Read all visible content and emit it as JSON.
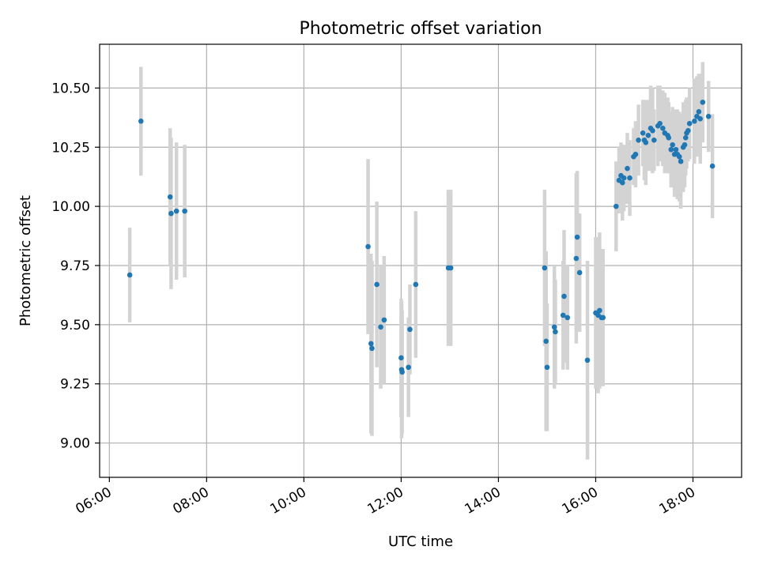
{
  "chart_data": {
    "type": "scatter",
    "title": "Photometric offset variation",
    "xlabel": "UTC time",
    "ylabel": "Photometric offset",
    "x_unit": "hours",
    "xlim": [
      5.8,
      19.0
    ],
    "ylim": [
      8.855,
      10.685
    ],
    "x_ticks": [
      {
        "value": 6,
        "label": "06:00"
      },
      {
        "value": 8,
        "label": "08:00"
      },
      {
        "value": 10,
        "label": "10:00"
      },
      {
        "value": 12,
        "label": "12:00"
      },
      {
        "value": 14,
        "label": "14:00"
      },
      {
        "value": 16,
        "label": "16:00"
      },
      {
        "value": 18,
        "label": "18:00"
      }
    ],
    "y_ticks": [
      {
        "value": 9.0,
        "label": "9.00"
      },
      {
        "value": 9.25,
        "label": "9.25"
      },
      {
        "value": 9.5,
        "label": "9.50"
      },
      {
        "value": 9.75,
        "label": "9.75"
      },
      {
        "value": 10.0,
        "label": "10.00"
      },
      {
        "value": 10.25,
        "label": "10.25"
      },
      {
        "value": 10.5,
        "label": "10.50"
      }
    ],
    "grid": true,
    "colors": {
      "marker": "#1f77b4",
      "errorbar": "#d3d3d3",
      "grid": "#b0b0b0"
    },
    "series": [
      {
        "points": [
          [
            6.42,
            9.71,
            0.2
          ],
          [
            6.65,
            10.36,
            0.23
          ],
          [
            7.25,
            10.04,
            0.29
          ],
          [
            7.27,
            9.97,
            0.32
          ],
          [
            7.38,
            9.98,
            0.29
          ],
          [
            7.55,
            9.98,
            0.28
          ],
          [
            11.32,
            9.83,
            0.37
          ],
          [
            11.38,
            9.42,
            0.38
          ],
          [
            11.4,
            9.4,
            0.37
          ],
          [
            11.5,
            9.67,
            0.35
          ],
          [
            11.58,
            9.49,
            0.26
          ],
          [
            11.65,
            9.52,
            0.27
          ],
          [
            12.0,
            9.36,
            0.25
          ],
          [
            12.01,
            9.31,
            0.29
          ],
          [
            12.02,
            9.3,
            0.26
          ],
          [
            12.15,
            9.32,
            0.21
          ],
          [
            12.18,
            9.48,
            0.19
          ],
          [
            12.3,
            9.67,
            0.31
          ],
          [
            12.97,
            9.74,
            0.33
          ],
          [
            13.02,
            9.74,
            0.33
          ],
          [
            14.95,
            9.74,
            0.33
          ],
          [
            14.98,
            9.43,
            0.38
          ],
          [
            15.0,
            9.32,
            0.27
          ],
          [
            15.15,
            9.49,
            0.26
          ],
          [
            15.17,
            9.47,
            0.22
          ],
          [
            15.33,
            9.54,
            0.23
          ],
          [
            15.35,
            9.62,
            0.28
          ],
          [
            15.42,
            9.53,
            0.22
          ],
          [
            15.6,
            9.78,
            0.36
          ],
          [
            15.62,
            9.87,
            0.28
          ],
          [
            15.67,
            9.72,
            0.25
          ],
          [
            15.83,
            9.35,
            0.42
          ],
          [
            16.0,
            9.55,
            0.32
          ],
          [
            16.05,
            9.54,
            0.33
          ],
          [
            16.08,
            9.56,
            0.33
          ],
          [
            16.12,
            9.53,
            0.28
          ],
          [
            16.15,
            9.53,
            0.29
          ],
          [
            16.42,
            10.0,
            0.19
          ],
          [
            16.48,
            10.11,
            0.14
          ],
          [
            16.52,
            10.13,
            0.14
          ],
          [
            16.55,
            10.1,
            0.16
          ],
          [
            16.58,
            10.12,
            0.14
          ],
          [
            16.65,
            10.16,
            0.15
          ],
          [
            16.7,
            10.12,
            0.16
          ],
          [
            16.78,
            10.21,
            0.12
          ],
          [
            16.82,
            10.22,
            0.14
          ],
          [
            16.88,
            10.28,
            0.15
          ],
          [
            16.97,
            10.31,
            0.14
          ],
          [
            17.0,
            10.28,
            0.17
          ],
          [
            17.03,
            10.27,
            0.18
          ],
          [
            17.08,
            10.3,
            0.15
          ],
          [
            17.13,
            10.33,
            0.18
          ],
          [
            17.17,
            10.32,
            0.18
          ],
          [
            17.2,
            10.28,
            0.13
          ],
          [
            17.28,
            10.34,
            0.17
          ],
          [
            17.32,
            10.35,
            0.16
          ],
          [
            17.38,
            10.33,
            0.16
          ],
          [
            17.42,
            10.31,
            0.17
          ],
          [
            17.48,
            10.3,
            0.16
          ],
          [
            17.5,
            10.29,
            0.15
          ],
          [
            17.55,
            10.24,
            0.16
          ],
          [
            17.58,
            10.26,
            0.16
          ],
          [
            17.62,
            10.22,
            0.18
          ],
          [
            17.65,
            10.24,
            0.17
          ],
          [
            17.68,
            10.22,
            0.19
          ],
          [
            17.72,
            10.21,
            0.19
          ],
          [
            17.75,
            10.19,
            0.2
          ],
          [
            17.8,
            10.25,
            0.19
          ],
          [
            17.83,
            10.26,
            0.18
          ],
          [
            17.85,
            10.29,
            0.16
          ],
          [
            17.87,
            10.31,
            0.15
          ],
          [
            17.9,
            10.32,
            0.13
          ],
          [
            17.93,
            10.35,
            0.15
          ],
          [
            18.03,
            10.36,
            0.18
          ],
          [
            18.08,
            10.38,
            0.17
          ],
          [
            18.12,
            10.4,
            0.16
          ],
          [
            18.15,
            10.37,
            0.19
          ],
          [
            18.2,
            10.44,
            0.17
          ],
          [
            18.32,
            10.38,
            0.15
          ],
          [
            18.4,
            10.17,
            0.22
          ]
        ]
      }
    ]
  }
}
